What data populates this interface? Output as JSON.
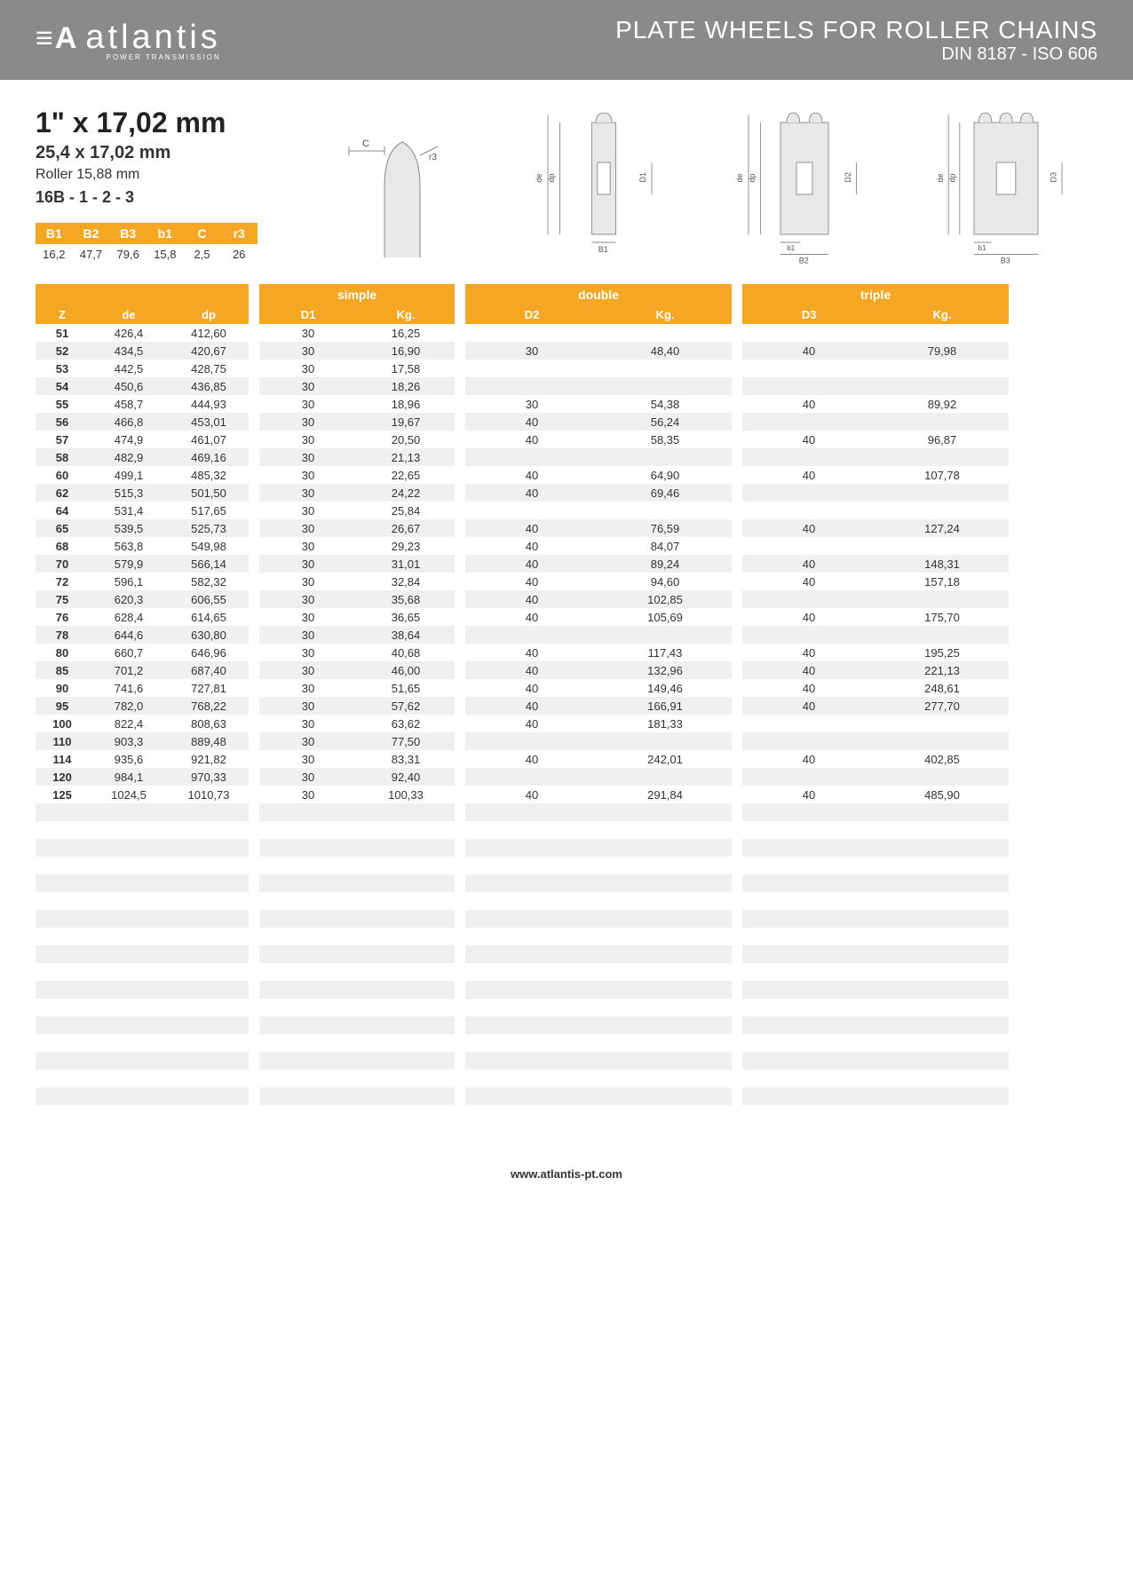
{
  "colors": {
    "header_bg": "#8a8a8a",
    "accent": "#f5a623",
    "row_alt": "#eef0f1",
    "text": "#333333"
  },
  "header": {
    "logo_mark": "≡A",
    "logo_text": "atlantis",
    "logo_sub": "POWER TRANSMISSION",
    "title": "PLATE WHEELS FOR ROLLER CHAINS",
    "subtitle": "DIN 8187 - ISO 606"
  },
  "spec": {
    "title": "1\" x 17,02 mm",
    "sub1": "25,4 x 17,02 mm",
    "sub2": "Roller 15,88 mm",
    "sub3": "16B - 1 - 2 - 3"
  },
  "small_table": {
    "headers": [
      "B1",
      "B2",
      "B3",
      "b1",
      "C",
      "r3"
    ],
    "values": [
      "16,2",
      "47,7",
      "79,6",
      "15,8",
      "2,5",
      "26"
    ]
  },
  "diagram_labels": {
    "c": "C",
    "r3": "r3",
    "de": "de",
    "dp": "dp",
    "d1": "D1",
    "d2": "D2",
    "d3": "D3",
    "b1": "b1",
    "B1": "B1",
    "B2": "B2",
    "B3": "B3"
  },
  "main_table": {
    "group_simple": "simple",
    "group_double": "double",
    "group_triple": "triple",
    "col_z": "Z",
    "col_de": "de",
    "col_dp": "dp",
    "col_d1": "D1",
    "col_d2": "D2",
    "col_d3": "D3",
    "col_kg": "Kg.",
    "rows": [
      {
        "z": "51",
        "de": "426,4",
        "dp": "412,60",
        "d1": "30",
        "kg1": "16,25",
        "d2": "",
        "kg2": "",
        "d3": "",
        "kg3": ""
      },
      {
        "z": "52",
        "de": "434,5",
        "dp": "420,67",
        "d1": "30",
        "kg1": "16,90",
        "d2": "30",
        "kg2": "48,40",
        "d3": "40",
        "kg3": "79,98"
      },
      {
        "z": "53",
        "de": "442,5",
        "dp": "428,75",
        "d1": "30",
        "kg1": "17,58",
        "d2": "",
        "kg2": "",
        "d3": "",
        "kg3": ""
      },
      {
        "z": "54",
        "de": "450,6",
        "dp": "436,85",
        "d1": "30",
        "kg1": "18,26",
        "d2": "",
        "kg2": "",
        "d3": "",
        "kg3": ""
      },
      {
        "z": "55",
        "de": "458,7",
        "dp": "444,93",
        "d1": "30",
        "kg1": "18,96",
        "d2": "30",
        "kg2": "54,38",
        "d3": "40",
        "kg3": "89,92"
      },
      {
        "z": "56",
        "de": "466,8",
        "dp": "453,01",
        "d1": "30",
        "kg1": "19,67",
        "d2": "40",
        "kg2": "56,24",
        "d3": "",
        "kg3": ""
      },
      {
        "z": "57",
        "de": "474,9",
        "dp": "461,07",
        "d1": "30",
        "kg1": "20,50",
        "d2": "40",
        "kg2": "58,35",
        "d3": "40",
        "kg3": "96,87"
      },
      {
        "z": "58",
        "de": "482,9",
        "dp": "469,16",
        "d1": "30",
        "kg1": "21,13",
        "d2": "",
        "kg2": "",
        "d3": "",
        "kg3": ""
      },
      {
        "z": "60",
        "de": "499,1",
        "dp": "485,32",
        "d1": "30",
        "kg1": "22,65",
        "d2": "40",
        "kg2": "64,90",
        "d3": "40",
        "kg3": "107,78"
      },
      {
        "z": "62",
        "de": "515,3",
        "dp": "501,50",
        "d1": "30",
        "kg1": "24,22",
        "d2": "40",
        "kg2": "69,46",
        "d3": "",
        "kg3": ""
      },
      {
        "z": "64",
        "de": "531,4",
        "dp": "517,65",
        "d1": "30",
        "kg1": "25,84",
        "d2": "",
        "kg2": "",
        "d3": "",
        "kg3": ""
      },
      {
        "z": "65",
        "de": "539,5",
        "dp": "525,73",
        "d1": "30",
        "kg1": "26,67",
        "d2": "40",
        "kg2": "76,59",
        "d3": "40",
        "kg3": "127,24"
      },
      {
        "z": "68",
        "de": "563,8",
        "dp": "549,98",
        "d1": "30",
        "kg1": "29,23",
        "d2": "40",
        "kg2": "84,07",
        "d3": "",
        "kg3": ""
      },
      {
        "z": "70",
        "de": "579,9",
        "dp": "566,14",
        "d1": "30",
        "kg1": "31,01",
        "d2": "40",
        "kg2": "89,24",
        "d3": "40",
        "kg3": "148,31"
      },
      {
        "z": "72",
        "de": "596,1",
        "dp": "582,32",
        "d1": "30",
        "kg1": "32,84",
        "d2": "40",
        "kg2": "94,60",
        "d3": "40",
        "kg3": "157,18"
      },
      {
        "z": "75",
        "de": "620,3",
        "dp": "606,55",
        "d1": "30",
        "kg1": "35,68",
        "d2": "40",
        "kg2": "102,85",
        "d3": "",
        "kg3": ""
      },
      {
        "z": "76",
        "de": "628,4",
        "dp": "614,65",
        "d1": "30",
        "kg1": "36,65",
        "d2": "40",
        "kg2": "105,69",
        "d3": "40",
        "kg3": "175,70"
      },
      {
        "z": "78",
        "de": "644,6",
        "dp": "630,80",
        "d1": "30",
        "kg1": "38,64",
        "d2": "",
        "kg2": "",
        "d3": "",
        "kg3": ""
      },
      {
        "z": "80",
        "de": "660,7",
        "dp": "646,96",
        "d1": "30",
        "kg1": "40,68",
        "d2": "40",
        "kg2": "117,43",
        "d3": "40",
        "kg3": "195,25"
      },
      {
        "z": "85",
        "de": "701,2",
        "dp": "687,40",
        "d1": "30",
        "kg1": "46,00",
        "d2": "40",
        "kg2": "132,96",
        "d3": "40",
        "kg3": "221,13"
      },
      {
        "z": "90",
        "de": "741,6",
        "dp": "727,81",
        "d1": "30",
        "kg1": "51,65",
        "d2": "40",
        "kg2": "149,46",
        "d3": "40",
        "kg3": "248,61"
      },
      {
        "z": "95",
        "de": "782,0",
        "dp": "768,22",
        "d1": "30",
        "kg1": "57,62",
        "d2": "40",
        "kg2": "166,91",
        "d3": "40",
        "kg3": "277,70"
      },
      {
        "z": "100",
        "de": "822,4",
        "dp": "808,63",
        "d1": "30",
        "kg1": "63,62",
        "d2": "40",
        "kg2": "181,33",
        "d3": "",
        "kg3": ""
      },
      {
        "z": "110",
        "de": "903,3",
        "dp": "889,48",
        "d1": "30",
        "kg1": "77,50",
        "d2": "",
        "kg2": "",
        "d3": "",
        "kg3": ""
      },
      {
        "z": "114",
        "de": "935,6",
        "dp": "921,82",
        "d1": "30",
        "kg1": "83,31",
        "d2": "40",
        "kg2": "242,01",
        "d3": "40",
        "kg3": "402,85"
      },
      {
        "z": "120",
        "de": "984,1",
        "dp": "970,33",
        "d1": "30",
        "kg1": "92,40",
        "d2": "",
        "kg2": "",
        "d3": "",
        "kg3": ""
      },
      {
        "z": "125",
        "de": "1024,5",
        "dp": "1010,73",
        "d1": "30",
        "kg1": "100,33",
        "d2": "40",
        "kg2": "291,84",
        "d3": "40",
        "kg3": "485,90"
      }
    ],
    "empty_rows": 18
  },
  "footer": "www.atlantis-pt.com"
}
